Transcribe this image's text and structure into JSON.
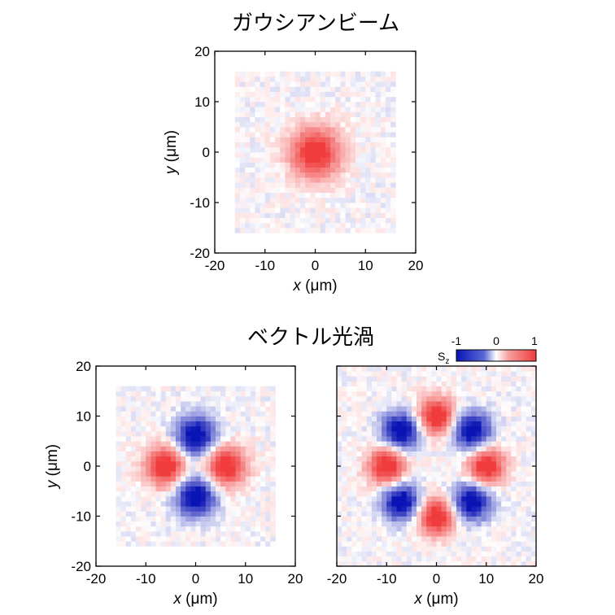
{
  "titles": {
    "top": "ガウシアンビーム",
    "bottom": "ベクトル光渦"
  },
  "colorbar": {
    "label": "S",
    "label_sub": "z",
    "ticks": [
      "-1",
      "0",
      "1"
    ],
    "range": [
      -1,
      1
    ],
    "colors": {
      "low": "#0a14b4",
      "mid": "#ffffff",
      "high": "#f03c3c"
    }
  },
  "chart_data": [
    {
      "type": "heatmap",
      "title": "ガウシアンビーム",
      "xlabel_var": "x",
      "xlabel_unit": "(μm)",
      "ylabel_var": "y",
      "ylabel_unit": "(μm)",
      "xlim": [
        -20,
        20
      ],
      "ylim": [
        -20,
        20
      ],
      "xticks": [
        -20,
        -10,
        0,
        10,
        20
      ],
      "yticks": [
        -20,
        -10,
        0,
        10,
        20
      ],
      "data_extent": [
        -16,
        16
      ],
      "pattern": "gaussian",
      "peak_value": 1,
      "beam_radius": 3.5
    },
    {
      "type": "heatmap",
      "title": "ベクトル光渦",
      "xlabel_var": "x",
      "xlabel_unit": "(μm)",
      "ylabel_var": "y",
      "ylabel_unit": "(μm)",
      "xlim": [
        -20,
        20
      ],
      "ylim": [
        -20,
        20
      ],
      "xticks": [
        -20,
        -10,
        0,
        10,
        20
      ],
      "yticks": [
        -20,
        -10,
        0,
        10,
        20
      ],
      "data_extent": [
        -16,
        16
      ],
      "pattern": "four-lobe",
      "lobes": [
        {
          "angle_deg": 0,
          "sign": 1
        },
        {
          "angle_deg": 90,
          "sign": -1
        },
        {
          "angle_deg": 180,
          "sign": 1
        },
        {
          "angle_deg": 270,
          "sign": -1
        }
      ],
      "lobe_radius": 6
    },
    {
      "type": "heatmap",
      "xlabel_var": "x",
      "xlabel_unit": "(μm)",
      "xlim": [
        -20,
        20
      ],
      "ylim": [
        -20,
        20
      ],
      "xticks": [
        -20,
        -10,
        0,
        10,
        20
      ],
      "yticks": [
        -20,
        -10,
        0,
        10,
        20
      ],
      "data_extent": [
        -20,
        20
      ],
      "pattern": "eight-lobe",
      "lobes": [
        {
          "angle_deg": 0,
          "sign": 1
        },
        {
          "angle_deg": 45,
          "sign": -1
        },
        {
          "angle_deg": 90,
          "sign": 1
        },
        {
          "angle_deg": 135,
          "sign": -1
        },
        {
          "angle_deg": 180,
          "sign": 1
        },
        {
          "angle_deg": 225,
          "sign": -1
        },
        {
          "angle_deg": 270,
          "sign": 1
        },
        {
          "angle_deg": 315,
          "sign": -1
        }
      ],
      "lobe_radius": 10
    }
  ]
}
